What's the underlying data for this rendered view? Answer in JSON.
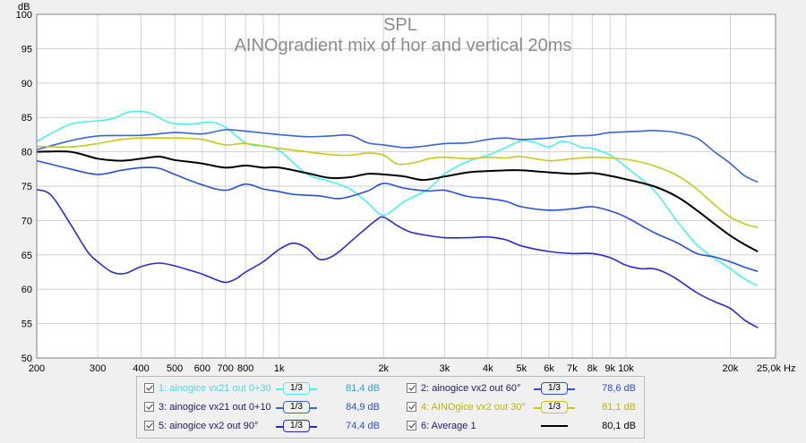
{
  "chart_data": {
    "type": "line",
    "title": "SPL",
    "subtitle": "AINOgradient mix of hor and vertical 20ms",
    "ylabel": "dB",
    "xlabel": "",
    "x_unit_label": "Hz",
    "x_scale": "log",
    "xlim": [
      200,
      27000
    ],
    "ylim": [
      50,
      100
    ],
    "yticks": [
      50,
      55,
      60,
      65,
      70,
      75,
      80,
      85,
      90,
      95,
      100
    ],
    "xticks": [
      {
        "v": 200,
        "label": "200"
      },
      {
        "v": 300,
        "label": "300"
      },
      {
        "v": 400,
        "label": "400"
      },
      {
        "v": 500,
        "label": "500"
      },
      {
        "v": 600,
        "label": "600"
      },
      {
        "v": 700,
        "label": "700"
      },
      {
        "v": 800,
        "label": "800"
      },
      {
        "v": 1000,
        "label": "1k"
      },
      {
        "v": 2000,
        "label": "2k"
      },
      {
        "v": 3000,
        "label": "3k"
      },
      {
        "v": 4000,
        "label": "4k"
      },
      {
        "v": 5000,
        "label": "5k"
      },
      {
        "v": 6000,
        "label": "6k"
      },
      {
        "v": 7000,
        "label": "7k"
      },
      {
        "v": 8000,
        "label": "8k"
      },
      {
        "v": 9000,
        "label": "9k"
      },
      {
        "v": 10000,
        "label": "10k"
      },
      {
        "v": 20000,
        "label": "20k"
      },
      {
        "v": 25000,
        "label": "25,0k Hz"
      }
    ],
    "grid": true,
    "legend_position": "bottom",
    "series": [
      {
        "name": "1: ainogice vx21 out 0+30",
        "color": "#4af0f0",
        "level": "81,4 dB",
        "smoothing": "1/3",
        "points": [
          [
            200,
            81.5
          ],
          [
            250,
            84
          ],
          [
            300,
            84.5
          ],
          [
            330,
            84.8
          ],
          [
            370,
            85.8
          ],
          [
            420,
            85.7
          ],
          [
            480,
            84.3
          ],
          [
            550,
            84
          ],
          [
            630,
            84.3
          ],
          [
            700,
            83.6
          ],
          [
            800,
            81.3
          ],
          [
            900,
            80.8
          ],
          [
            1000,
            80.2
          ],
          [
            1200,
            76.8
          ],
          [
            1400,
            75.7
          ],
          [
            1600,
            74.6
          ],
          [
            1800,
            72.6
          ],
          [
            2000,
            70.8
          ],
          [
            2300,
            72.8
          ],
          [
            2700,
            74.6
          ],
          [
            3000,
            76.8
          ],
          [
            3500,
            78.6
          ],
          [
            4000,
            79.5
          ],
          [
            4500,
            80.6
          ],
          [
            5000,
            81.6
          ],
          [
            5500,
            81.3
          ],
          [
            6000,
            80.7
          ],
          [
            6500,
            81.5
          ],
          [
            7000,
            81.2
          ],
          [
            7500,
            80.6
          ],
          [
            8000,
            80.5
          ],
          [
            9000,
            79.5
          ],
          [
            10000,
            77.8
          ],
          [
            12000,
            74.5
          ],
          [
            14000,
            70
          ],
          [
            16000,
            66.5
          ],
          [
            18000,
            64.5
          ],
          [
            20000,
            63
          ],
          [
            22000,
            61.5
          ],
          [
            24000,
            60.5
          ]
        ]
      },
      {
        "name": "2: ainogice vx2 out 60°",
        "color": "#2a4ee0",
        "level": "78,6 dB",
        "smoothing": "1/3",
        "points": [
          [
            200,
            78.7
          ],
          [
            250,
            77.5
          ],
          [
            300,
            76.7
          ],
          [
            350,
            77.3
          ],
          [
            400,
            77.7
          ],
          [
            450,
            77.6
          ],
          [
            500,
            76.7
          ],
          [
            600,
            75.2
          ],
          [
            700,
            74.4
          ],
          [
            800,
            75.3
          ],
          [
            900,
            74.6
          ],
          [
            1000,
            74.2
          ],
          [
            1100,
            73.8
          ],
          [
            1300,
            73.6
          ],
          [
            1500,
            73.2
          ],
          [
            1800,
            74.3
          ],
          [
            2000,
            75.4
          ],
          [
            2300,
            74.7
          ],
          [
            2700,
            74.3
          ],
          [
            3000,
            74.4
          ],
          [
            3500,
            73.5
          ],
          [
            4000,
            73.2
          ],
          [
            4500,
            72.8
          ],
          [
            5000,
            72
          ],
          [
            6000,
            71.5
          ],
          [
            7000,
            71.7
          ],
          [
            8000,
            72
          ],
          [
            9000,
            71.4
          ],
          [
            10000,
            70.5
          ],
          [
            12000,
            68.3
          ],
          [
            14000,
            66.8
          ],
          [
            16000,
            65.2
          ],
          [
            18000,
            64.7
          ],
          [
            20000,
            64
          ],
          [
            22000,
            63.2
          ],
          [
            24000,
            62.6
          ]
        ]
      },
      {
        "name": "3: ainogice vx21 out 0+10",
        "color": "#3a64dc",
        "level": "84,9 dB",
        "smoothing": "1/3",
        "points": [
          [
            200,
            80.3
          ],
          [
            250,
            81.6
          ],
          [
            300,
            82.3
          ],
          [
            400,
            82.4
          ],
          [
            500,
            82.8
          ],
          [
            600,
            82.6
          ],
          [
            700,
            83.2
          ],
          [
            800,
            83
          ],
          [
            1000,
            82.5
          ],
          [
            1200,
            82.2
          ],
          [
            1400,
            82.3
          ],
          [
            1600,
            82.4
          ],
          [
            1800,
            81.3
          ],
          [
            2000,
            81
          ],
          [
            2300,
            80.6
          ],
          [
            2600,
            80.8
          ],
          [
            3000,
            81.2
          ],
          [
            3500,
            81.3
          ],
          [
            4000,
            81.8
          ],
          [
            4500,
            82
          ],
          [
            5000,
            81.8
          ],
          [
            6000,
            82
          ],
          [
            7000,
            82.3
          ],
          [
            8000,
            82.4
          ],
          [
            9000,
            82.8
          ],
          [
            10000,
            82.9
          ],
          [
            11000,
            83
          ],
          [
            12000,
            83.1
          ],
          [
            13000,
            83
          ],
          [
            14000,
            82.8
          ],
          [
            16000,
            82
          ],
          [
            18000,
            80
          ],
          [
            20000,
            78.3
          ],
          [
            22000,
            76.5
          ],
          [
            24000,
            75.6
          ]
        ]
      },
      {
        "name": "4: AINOgice vx2 out 30°",
        "color": "#c8c81a",
        "level": "81,1 dB",
        "smoothing": "1/3",
        "points": [
          [
            200,
            80.8
          ],
          [
            250,
            80.7
          ],
          [
            300,
            81.2
          ],
          [
            350,
            81.8
          ],
          [
            400,
            82
          ],
          [
            500,
            82
          ],
          [
            600,
            81.8
          ],
          [
            700,
            81
          ],
          [
            800,
            81.2
          ],
          [
            1000,
            80.5
          ],
          [
            1200,
            80
          ],
          [
            1400,
            79.6
          ],
          [
            1600,
            79.5
          ],
          [
            1800,
            79.8
          ],
          [
            2000,
            79.5
          ],
          [
            2200,
            78.2
          ],
          [
            2500,
            78.5
          ],
          [
            2700,
            79
          ],
          [
            3000,
            79.2
          ],
          [
            3500,
            79
          ],
          [
            4000,
            79.2
          ],
          [
            4500,
            79.1
          ],
          [
            5000,
            79.3
          ],
          [
            6000,
            78.7
          ],
          [
            7000,
            79
          ],
          [
            8000,
            79.2
          ],
          [
            9000,
            79.1
          ],
          [
            10000,
            78.9
          ],
          [
            11000,
            78.5
          ],
          [
            12000,
            78
          ],
          [
            14000,
            76.6
          ],
          [
            16000,
            74.6
          ],
          [
            18000,
            72.3
          ],
          [
            20000,
            70.5
          ],
          [
            22000,
            69.5
          ],
          [
            24000,
            69
          ]
        ]
      },
      {
        "name": "5: ainogice vx2 out 90°",
        "color": "#2828d8",
        "level": "74,4 dB",
        "smoothing": "1/3",
        "points": [
          [
            200,
            74.5
          ],
          [
            220,
            73.7
          ],
          [
            250,
            69.5
          ],
          [
            280,
            65.5
          ],
          [
            300,
            64
          ],
          [
            330,
            62.5
          ],
          [
            360,
            62.3
          ],
          [
            400,
            63.3
          ],
          [
            450,
            63.8
          ],
          [
            500,
            63.4
          ],
          [
            550,
            62.8
          ],
          [
            600,
            62.2
          ],
          [
            650,
            61.5
          ],
          [
            700,
            61
          ],
          [
            750,
            61.5
          ],
          [
            800,
            62.5
          ],
          [
            900,
            64
          ],
          [
            1000,
            65.8
          ],
          [
            1100,
            66.7
          ],
          [
            1200,
            66
          ],
          [
            1300,
            64.4
          ],
          [
            1400,
            64.6
          ],
          [
            1500,
            65.6
          ],
          [
            1700,
            68
          ],
          [
            1900,
            70
          ],
          [
            2000,
            70.5
          ],
          [
            2200,
            69.2
          ],
          [
            2400,
            68.3
          ],
          [
            2700,
            67.8
          ],
          [
            3000,
            67.5
          ],
          [
            3500,
            67.5
          ],
          [
            4000,
            67.6
          ],
          [
            4500,
            67.2
          ],
          [
            5000,
            66.3
          ],
          [
            6000,
            65.5
          ],
          [
            7000,
            65.2
          ],
          [
            8000,
            65.2
          ],
          [
            9000,
            64.6
          ],
          [
            10000,
            63.5
          ],
          [
            11000,
            63
          ],
          [
            12000,
            63
          ],
          [
            13000,
            62.4
          ],
          [
            14000,
            61.5
          ],
          [
            16000,
            59.5
          ],
          [
            18000,
            58.2
          ],
          [
            20000,
            57.2
          ],
          [
            22000,
            55.5
          ],
          [
            24000,
            54.4
          ]
        ]
      },
      {
        "name": "6: Average 1",
        "color": "#000000",
        "level": "80,1 dB",
        "smoothing": "",
        "points": [
          [
            200,
            80
          ],
          [
            250,
            80
          ],
          [
            300,
            79
          ],
          [
            350,
            78.7
          ],
          [
            400,
            79
          ],
          [
            450,
            79.3
          ],
          [
            500,
            78.8
          ],
          [
            600,
            78.3
          ],
          [
            700,
            77.7
          ],
          [
            800,
            78
          ],
          [
            900,
            77.7
          ],
          [
            1000,
            77.7
          ],
          [
            1200,
            76.9
          ],
          [
            1400,
            76.2
          ],
          [
            1600,
            76.3
          ],
          [
            1800,
            76.8
          ],
          [
            2000,
            76.7
          ],
          [
            2300,
            76.4
          ],
          [
            2600,
            75.9
          ],
          [
            3000,
            76.4
          ],
          [
            3500,
            77
          ],
          [
            4000,
            77.2
          ],
          [
            4500,
            77.3
          ],
          [
            5000,
            77.3
          ],
          [
            6000,
            77
          ],
          [
            7000,
            76.8
          ],
          [
            8000,
            76.9
          ],
          [
            9000,
            76.5
          ],
          [
            10000,
            76
          ],
          [
            12000,
            75
          ],
          [
            14000,
            73.5
          ],
          [
            16000,
            71.5
          ],
          [
            18000,
            69.5
          ],
          [
            20000,
            67.8
          ],
          [
            22000,
            66.5
          ],
          [
            24000,
            65.5
          ]
        ]
      }
    ]
  }
}
